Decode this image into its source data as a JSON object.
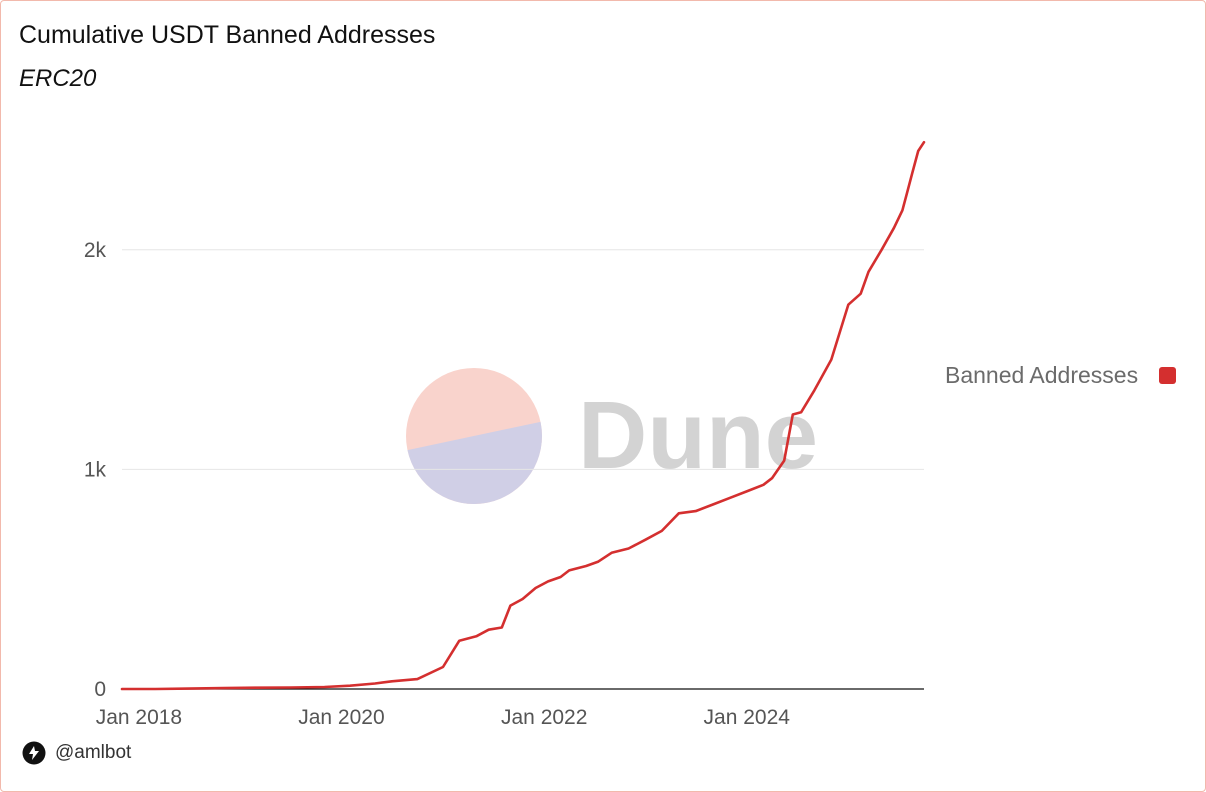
{
  "header": {
    "title": "Cumulative USDT Banned Addresses",
    "subtitle": "ERC20"
  },
  "watermark": {
    "text": "Dune"
  },
  "legend": {
    "label": "Banned Addresses"
  },
  "footer": {
    "handle": "@amlbot",
    "icon": "dune-logo-icon"
  },
  "colors": {
    "series": "#d42f2f",
    "grid": "#e6e6e6",
    "axis": "#111111",
    "tick_text": "#555555",
    "frame": "#f2b9ac",
    "watermark_top": "#f9d3cc",
    "watermark_bottom": "#d0cfe6",
    "watermark_text": "#d3d3d3"
  },
  "chart_data": {
    "type": "line",
    "title": "Cumulative USDT Banned Addresses",
    "subtitle": "ERC20",
    "xlabel": "",
    "ylabel": "",
    "x_ticks": [
      "Jan 2018",
      "Jan 2020",
      "Jan 2022",
      "Jan 2024"
    ],
    "y_ticks": [
      {
        "value": 0,
        "label": "0"
      },
      {
        "value": 1000,
        "label": "1k"
      },
      {
        "value": 2000,
        "label": "2k"
      }
    ],
    "xlim": [
      "2017-11-01",
      "2025-10-01"
    ],
    "ylim": [
      0,
      2500
    ],
    "grid": true,
    "legend_position": "right",
    "series": [
      {
        "name": "Banned Addresses",
        "points": [
          [
            "2017-11-01",
            0
          ],
          [
            "2018-03-01",
            0
          ],
          [
            "2018-07-01",
            2
          ],
          [
            "2018-11-01",
            4
          ],
          [
            "2019-03-01",
            6
          ],
          [
            "2019-07-01",
            7
          ],
          [
            "2019-11-01",
            9
          ],
          [
            "2020-02-01",
            15
          ],
          [
            "2020-05-01",
            25
          ],
          [
            "2020-07-01",
            35
          ],
          [
            "2020-10-01",
            45
          ],
          [
            "2021-01-01",
            100
          ],
          [
            "2021-03-01",
            220
          ],
          [
            "2021-05-01",
            240
          ],
          [
            "2021-06-15",
            270
          ],
          [
            "2021-08-01",
            280
          ],
          [
            "2021-09-01",
            380
          ],
          [
            "2021-10-15",
            410
          ],
          [
            "2021-12-01",
            460
          ],
          [
            "2022-01-15",
            490
          ],
          [
            "2022-03-01",
            510
          ],
          [
            "2022-04-01",
            540
          ],
          [
            "2022-06-01",
            560
          ],
          [
            "2022-07-15",
            580
          ],
          [
            "2022-09-01",
            620
          ],
          [
            "2022-11-01",
            640
          ],
          [
            "2023-01-01",
            680
          ],
          [
            "2023-03-01",
            720
          ],
          [
            "2023-05-01",
            800
          ],
          [
            "2023-07-01",
            810
          ],
          [
            "2023-09-01",
            840
          ],
          [
            "2023-11-01",
            870
          ],
          [
            "2024-01-01",
            900
          ],
          [
            "2024-03-01",
            930
          ],
          [
            "2024-04-01",
            960
          ],
          [
            "2024-05-15",
            1040
          ],
          [
            "2024-06-15",
            1250
          ],
          [
            "2024-07-15",
            1260
          ],
          [
            "2024-09-01",
            1360
          ],
          [
            "2024-11-01",
            1500
          ],
          [
            "2025-01-01",
            1750
          ],
          [
            "2025-02-15",
            1800
          ],
          [
            "2025-03-15",
            1900
          ],
          [
            "2025-05-01",
            2000
          ],
          [
            "2025-06-15",
            2100
          ],
          [
            "2025-07-15",
            2180
          ],
          [
            "2025-08-01",
            2260
          ],
          [
            "2025-08-20",
            2350
          ],
          [
            "2025-09-10",
            2450
          ],
          [
            "2025-10-01",
            2490
          ]
        ]
      }
    ]
  }
}
